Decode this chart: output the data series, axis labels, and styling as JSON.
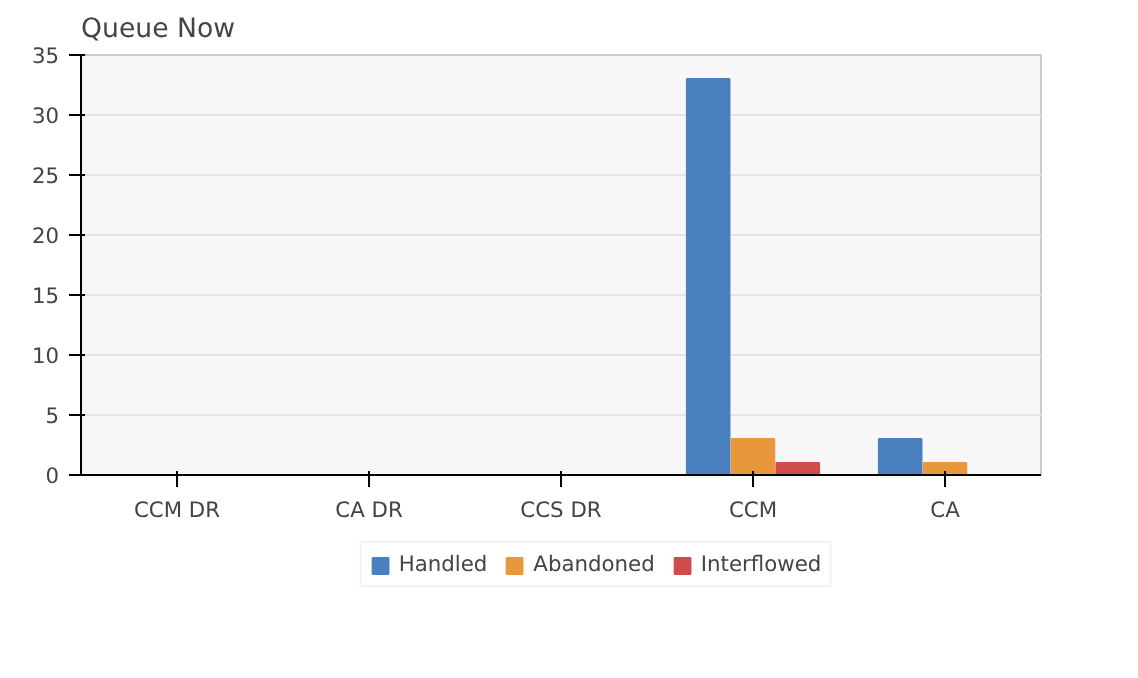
{
  "chart_data": {
    "type": "bar",
    "title": "Queue Now",
    "categories": [
      "CCM DR",
      "CA DR",
      "CCS DR",
      "CCM",
      "CA"
    ],
    "series": [
      {
        "name": "Handled",
        "color": "#4a7fc0",
        "values": [
          0,
          0,
          0,
          33,
          3
        ]
      },
      {
        "name": "Abandoned",
        "color": "#e8973a",
        "values": [
          0,
          0,
          0,
          3,
          1
        ]
      },
      {
        "name": "Interflowed",
        "color": "#d24b4b",
        "values": [
          0,
          0,
          0,
          1,
          0
        ]
      }
    ],
    "ylim": [
      0,
      35
    ],
    "yticks": [
      0,
      5,
      10,
      15,
      20,
      25,
      30,
      35
    ],
    "grid": "y",
    "legend": "bottom"
  }
}
